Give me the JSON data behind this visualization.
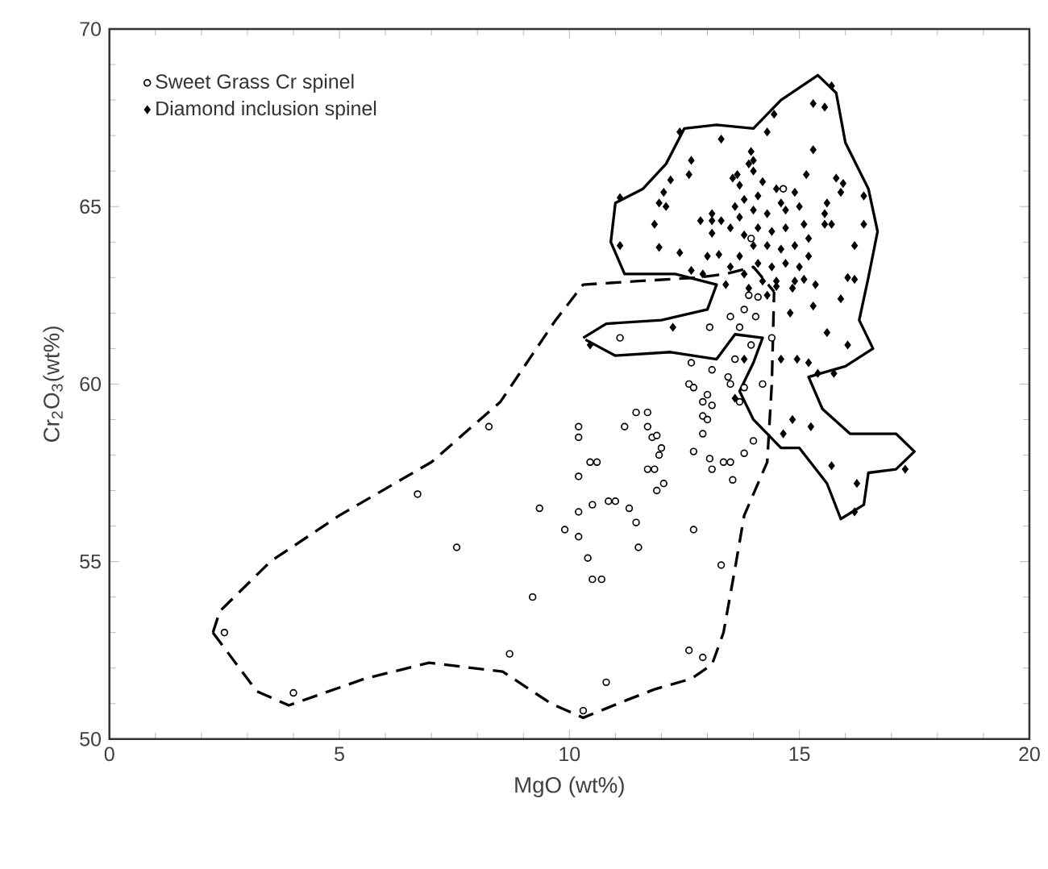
{
  "chart_data": {
    "type": "scatter",
    "xlabel": "MgO (wt%)",
    "ylabel": "Cr$_{2}$O$_{3}$(wt%)",
    "xlim": [
      0,
      20
    ],
    "ylim": [
      50,
      70
    ],
    "xticks": [
      0,
      5,
      10,
      15,
      20
    ],
    "yticks": [
      50,
      55,
      60,
      65,
      70
    ],
    "grid": false,
    "legend": "top left",
    "series": [
      {
        "name": "Sweet Grass Cr spinel",
        "marker": "circle",
        "color": "#000000",
        "x": [
          2.5,
          4.0,
          6.7,
          8.25,
          7.55,
          9.35,
          9.2,
          8.7,
          10.2,
          10.2,
          10.45,
          10.6,
          10.2,
          10.5,
          10.2,
          9.9,
          10.2,
          10.4,
          10.5,
          10.7,
          10.3,
          10.8,
          10.85,
          12.65,
          13.1,
          12.6,
          12.7,
          13.0,
          12.9,
          13.1,
          12.9,
          13.0,
          12.9,
          12.7,
          13.05,
          13.1,
          13.35,
          13.5,
          13.55,
          13.8,
          14.0,
          13.8,
          13.45,
          13.5,
          13.7,
          14.2,
          12.7,
          13.3,
          12.6,
          12.9,
          11.45,
          11.7,
          11.2,
          11.7,
          11.8,
          11.9,
          12.0,
          11.95,
          11.7,
          11.85,
          12.05,
          11.9,
          11.0,
          11.3,
          11.45,
          11.5,
          11.1,
          13.05,
          13.7,
          14.05,
          13.9,
          14.1,
          13.8,
          13.5,
          13.95,
          14.4,
          14.65,
          13.95,
          13.6
        ],
        "values": [
          53.0,
          51.3,
          56.9,
          58.8,
          55.4,
          56.5,
          54.0,
          52.4,
          58.8,
          58.5,
          57.8,
          57.8,
          57.4,
          56.6,
          56.4,
          55.9,
          55.7,
          55.1,
          54.5,
          54.5,
          50.8,
          51.6,
          56.7,
          60.6,
          60.4,
          60.0,
          59.9,
          59.7,
          59.5,
          59.4,
          59.1,
          59.0,
          58.6,
          58.1,
          57.9,
          57.6,
          57.8,
          57.8,
          57.3,
          58.05,
          58.4,
          59.9,
          60.2,
          60.0,
          59.5,
          60.0,
          55.9,
          54.9,
          52.5,
          52.3,
          59.2,
          59.2,
          58.8,
          58.8,
          58.5,
          58.55,
          58.2,
          58.0,
          57.6,
          57.6,
          57.2,
          57.0,
          56.7,
          56.5,
          56.1,
          55.4,
          61.3,
          61.6,
          61.6,
          61.9,
          62.5,
          62.45,
          62.1,
          61.9,
          61.1,
          61.3,
          65.5,
          64.1,
          60.7
        ]
      },
      {
        "name": "Diamond inclusion spinel",
        "marker": "diamond",
        "color": "#000000",
        "x": [
          15.7,
          15.3,
          15.55,
          14.45,
          14.3,
          12.4,
          13.3,
          15.3,
          13.95,
          13.9,
          14.0,
          12.65,
          12.6,
          13.65,
          13.55,
          15.15,
          15.8,
          15.95,
          12.2,
          12.05,
          11.1,
          11.95,
          12.1,
          15.9,
          15.6,
          15.55,
          16.4,
          13.1,
          12.85,
          13.1,
          13.3,
          11.85,
          16.4,
          13.1,
          15.7,
          15.55,
          11.1,
          11.95,
          12.4,
          16.2,
          13.0,
          13.25,
          12.65,
          12.9,
          16.05,
          16.2,
          15.35,
          14.85,
          15.9,
          15.3,
          14.8,
          12.25,
          15.6,
          16.05,
          14.95,
          15.4,
          15.75,
          14.6,
          14.5,
          14.0,
          13.7,
          13.8,
          14.2,
          14.5,
          14.9,
          15.0,
          14.7,
          14.3,
          14.0,
          13.7,
          13.5,
          13.8,
          14.1,
          14.4,
          14.7,
          15.1,
          15.2,
          14.9,
          14.6,
          14.3,
          14.0,
          13.7,
          13.5,
          13.8,
          14.1,
          14.4,
          14.7,
          15.0,
          15.2,
          14.9,
          14.5,
          14.2,
          13.9,
          14.3,
          15.1,
          13.4,
          14.6,
          14.1,
          13.6,
          15.2,
          14.85,
          14.65,
          15.25,
          15.7,
          16.25,
          16.2,
          17.3,
          13.6,
          13.8,
          10.45
        ],
        "values": [
          68.4,
          67.9,
          67.8,
          67.6,
          67.1,
          67.1,
          66.9,
          66.6,
          66.55,
          66.2,
          66.3,
          66.3,
          65.9,
          65.9,
          65.8,
          65.9,
          65.8,
          65.65,
          65.75,
          65.4,
          65.25,
          65.1,
          65.0,
          65.4,
          65.1,
          64.8,
          65.3,
          64.8,
          64.6,
          64.6,
          64.6,
          64.5,
          64.5,
          64.25,
          64.5,
          64.5,
          63.9,
          63.85,
          63.7,
          63.9,
          63.6,
          63.65,
          63.2,
          63.1,
          63.0,
          62.95,
          62.8,
          62.7,
          62.4,
          62.2,
          62.0,
          61.6,
          61.45,
          61.1,
          60.7,
          60.3,
          60.3,
          60.7,
          62.75,
          66.0,
          65.6,
          65.2,
          65.7,
          65.5,
          65.4,
          65.0,
          64.9,
          64.8,
          64.9,
          64.7,
          64.4,
          64.2,
          64.4,
          64.3,
          64.4,
          64.5,
          64.1,
          63.9,
          63.8,
          63.9,
          63.9,
          63.6,
          63.3,
          63.1,
          63.4,
          63.3,
          63.4,
          63.3,
          63.6,
          62.9,
          62.9,
          62.9,
          62.7,
          62.5,
          62.95,
          62.8,
          65.1,
          65.3,
          65.0,
          60.6,
          59.0,
          58.6,
          58.8,
          57.7,
          57.2,
          56.4,
          57.6,
          59.6,
          60.7,
          61.1
        ]
      },
      {
        "type": "line",
        "line_style": "dashed",
        "color": "#000000",
        "x": [
          2.25,
          2.4,
          3.5,
          5.0,
          7.0,
          8.5,
          9.7,
          10.3,
          11.5,
          12.8,
          13.4,
          14.0,
          14.45
        ],
        "values": [
          53.0,
          53.6,
          55.0,
          56.3,
          57.8,
          59.5,
          61.8,
          62.8,
          62.9,
          63.0,
          63.1,
          63.3,
          62.6
        ]
      },
      {
        "type": "line",
        "line_style": "dashed",
        "color": "#000000",
        "x": [
          2.25,
          3.2,
          3.9,
          5.55,
          6.95,
          8.55,
          9.6,
          10.3,
          11.25,
          11.85,
          12.65,
          13.1,
          13.35,
          13.6,
          13.8,
          14.3,
          14.4,
          14.45
        ],
        "values": [
          53.0,
          51.35,
          50.95,
          51.7,
          52.15,
          51.9,
          51.0,
          50.6,
          51.1,
          51.4,
          51.7,
          52.1,
          53.0,
          54.8,
          56.3,
          57.8,
          60.0,
          62.6
        ]
      },
      {
        "type": "line",
        "line_style": "solid",
        "color": "#000000",
        "x": [
          10.3,
          10.8,
          12.0,
          13.0,
          13.2,
          12.3,
          11.2,
          10.9,
          11.0,
          11.6,
          12.1,
          12.5,
          13.2,
          14.0,
          14.6,
          15.4,
          15.8,
          16.0,
          16.5,
          16.7,
          16.5,
          16.3,
          16.6,
          16.0,
          15.2,
          15.5,
          16.1,
          17.1,
          17.5,
          17.1,
          16.5,
          16.4,
          15.9,
          15.6,
          15.0,
          14.6,
          14.0,
          13.7,
          14.0,
          14.2,
          13.6,
          13.2,
          12.2,
          11.0,
          10.35
        ],
        "values": [
          61.3,
          61.7,
          61.8,
          62.1,
          62.8,
          63.1,
          63.1,
          64.0,
          65.1,
          65.5,
          66.2,
          67.2,
          67.3,
          67.2,
          68.0,
          68.7,
          68.2,
          66.8,
          65.5,
          64.3,
          63.0,
          61.8,
          61.0,
          60.5,
          60.2,
          59.3,
          58.6,
          58.6,
          58.1,
          57.6,
          57.5,
          56.6,
          56.2,
          57.2,
          58.2,
          58.2,
          59.0,
          59.8,
          60.6,
          61.3,
          61.4,
          60.7,
          60.9,
          60.8,
          61.25
        ]
      }
    ]
  }
}
